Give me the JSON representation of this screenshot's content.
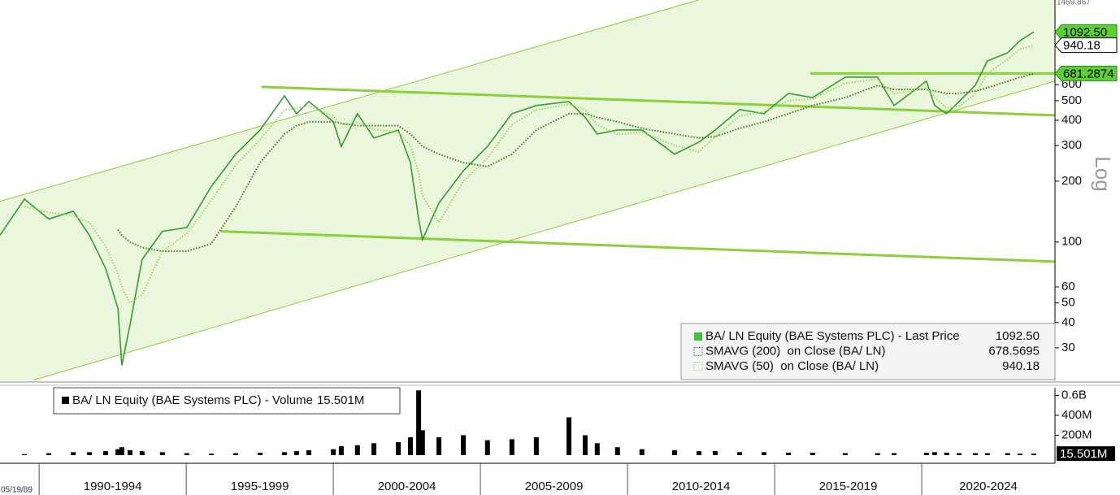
{
  "chart_data": [
    {
      "type": "line",
      "log_scale": true,
      "scale_label": "Log",
      "xlim": [
        1988.67,
        2024.53
      ],
      "ylim": [
        20.7,
        1469.867
      ],
      "yticks": [
        30,
        40,
        50,
        60,
        100,
        200,
        300,
        400,
        500,
        600
      ],
      "x": [
        1988.67,
        1989.5,
        1990.33,
        1991.16,
        1991.71,
        1992.26,
        1992.68,
        1992.81,
        1993.09,
        1993.5,
        1994.19,
        1995.02,
        1995.85,
        1996.68,
        1997.51,
        1998.34,
        1998.75,
        1999.17,
        2000.0,
        2000.27,
        2000.82,
        2001.38,
        2002.21,
        2002.62,
        2002.9,
        2003.03,
        2003.59,
        2004.42,
        2005.24,
        2006.07,
        2006.9,
        2008.01,
        2008.56,
        2008.97,
        2009.66,
        2010.49,
        2011.6,
        2012.43,
        2012.98,
        2013.81,
        2014.64,
        2015.47,
        2016.29,
        2017.4,
        2018.5,
        2019.06,
        2020.16,
        2020.44,
        2020.85,
        2021.27,
        2021.82,
        2022.23,
        2022.92,
        2023.34,
        2023.81
      ],
      "series": [
        {
          "name": "BA/ LN Equity (BAE Systems PLC) - Last Price",
          "color": "#2f9e2f",
          "last_label": "1092.50",
          "values": [
            108,
            163,
            130,
            142,
            108,
            74,
            47,
            24.6,
            39,
            82,
            113,
            118,
            188,
            272,
            358,
            528,
            431,
            495,
            393,
            297,
            431,
            327,
            358,
            247,
            130,
            103,
            156,
            225,
            297,
            431,
            473,
            495,
            413,
            342,
            358,
            358,
            272,
            312,
            358,
            452,
            431,
            543,
            518,
            653,
            653,
            473,
            624,
            473,
            431,
            495,
            595,
            786,
            862,
            990,
            1092.5
          ]
        },
        {
          "name": "SMAVG (200)  on Close (BA/ LN)",
          "color": "#3d7a1c",
          "last_label": "678.5695",
          "values": [
            null,
            null,
            null,
            null,
            null,
            null,
            115,
            108,
            100,
            94,
            90,
            90,
            98,
            149,
            247,
            342,
            376,
            393,
            393,
            386,
            376,
            376,
            376,
            342,
            312,
            297,
            272,
            247,
            236,
            272,
            358,
            431,
            431,
            413,
            393,
            365,
            342,
            327,
            332,
            365,
            393,
            431,
            473,
            518,
            595,
            568,
            568,
            558,
            543,
            543,
            558,
            579,
            624,
            653,
            678.5695
          ]
        },
        {
          "name": "SMAVG (50)  on Close (BA/ LN)",
          "color": "#9fd65c",
          "last_label": "940.18",
          "values": [
            null,
            150,
            140,
            135,
            125,
            95,
            70,
            60,
            50,
            55,
            90,
            110,
            160,
            240,
            320,
            450,
            460,
            470,
            420,
            380,
            390,
            360,
            350,
            300,
            220,
            170,
            125,
            200,
            260,
            380,
            450,
            480,
            450,
            380,
            340,
            350,
            300,
            280,
            330,
            420,
            440,
            500,
            510,
            610,
            640,
            540,
            580,
            520,
            460,
            470,
            540,
            680,
            800,
            900,
            940.18
          ]
        }
      ],
      "channel": [
        {
          "x": [
            1988.67,
            2012.43
          ],
          "y": [
            159,
            1575
          ]
        },
        {
          "x": [
            1989.77,
            2024.53
          ],
          "y": [
            20.7,
            624
          ]
        }
      ],
      "trend_lines": [
        {
          "x": [
            1997.56,
            2024.53
          ],
          "y": [
            585,
            423
          ]
        },
        {
          "x": [
            1996.18,
            2024.53
          ],
          "y": [
            113,
            80
          ]
        },
        {
          "x": [
            2016.21,
            2024.53
          ],
          "y": [
            681.2874,
            681.2874
          ]
        }
      ],
      "color": "#8ccf3c",
      "fill": "#ebf7dc"
    },
    {
      "type": "bar",
      "start_label": "05/19/89",
      "xlim": [
        1988.67,
        2024.53
      ],
      "ylim": [
        0,
        677000000
      ],
      "yticks": [
        {
          "value": 600000000,
          "label": "0.6B"
        },
        {
          "value": 400000000,
          "label": "400M"
        },
        {
          "value": 200000000,
          "label": "200M"
        }
      ],
      "xticks": [
        {
          "value": 1990,
          "label": "1990-1994"
        },
        {
          "value": 1995,
          "label": "1995-1999"
        },
        {
          "value": 2000,
          "label": "2000-2004"
        },
        {
          "value": 2005,
          "label": "2005-2009"
        },
        {
          "value": 2010,
          "label": "2010-2014"
        },
        {
          "value": 2015,
          "label": "2015-2019"
        },
        {
          "value": 2020,
          "label": "2020-2024"
        }
      ],
      "x": [
        1988.67,
        1989.5,
        1990.33,
        1991.16,
        1991.71,
        1992.26,
        1992.68,
        1992.81,
        1993.09,
        1993.5,
        1994.19,
        1995.02,
        1995.85,
        1996.68,
        1997.51,
        1998.34,
        1998.75,
        1999.17,
        2000.0,
        2000.27,
        2000.82,
        2001.38,
        2002.21,
        2002.62,
        2002.9,
        2003.03,
        2003.59,
        2004.42,
        2005.24,
        2006.07,
        2006.9,
        2008.01,
        2008.56,
        2008.97,
        2009.66,
        2010.49,
        2011.6,
        2012.43,
        2012.98,
        2013.81,
        2014.64,
        2015.47,
        2016.29,
        2017.4,
        2018.5,
        2019.06,
        2020.16,
        2020.44,
        2020.85,
        2021.27,
        2021.82,
        2022.23,
        2022.92,
        2023.34,
        2023.81
      ],
      "series": [
        {
          "name": "BA/ LN Equity (BAE Systems PLC) - Volume",
          "color": "#000000",
          "last_label": "15.501M",
          "values": [
            null,
            10000000,
            20000000,
            30000000,
            30000000,
            40000000,
            60000000,
            80000000,
            50000000,
            40000000,
            30000000,
            20000000,
            15000000,
            20000000,
            25000000,
            30000000,
            40000000,
            50000000,
            60000000,
            90000000,
            100000000,
            120000000,
            130000000,
            180000000,
            650000000,
            250000000,
            180000000,
            200000000,
            150000000,
            160000000,
            180000000,
            380000000,
            200000000,
            120000000,
            80000000,
            60000000,
            50000000,
            40000000,
            40000000,
            30000000,
            30000000,
            25000000,
            25000000,
            20000000,
            20000000,
            20000000,
            25000000,
            30000000,
            25000000,
            20000000,
            20000000,
            20000000,
            20000000,
            15000000,
            15501000
          ]
        }
      ]
    }
  ]
}
